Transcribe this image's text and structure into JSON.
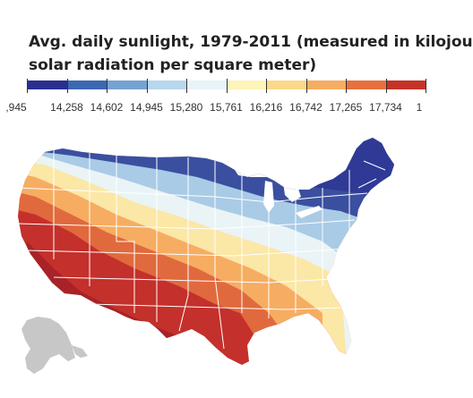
{
  "title": {
    "line1": "Avg. daily sunlight, 1979-2011 (measured in kilojou",
    "line2": "solar radiation per square meter)"
  },
  "legend": {
    "colors": [
      "#2a2f8f",
      "#3d67b3",
      "#76a3d1",
      "#b8d7ec",
      "#e8f3f6",
      "#fdf4b8",
      "#fbd98a",
      "#f6ad62",
      "#e7703f",
      "#c53227"
    ],
    "labels": [
      ",945",
      "14,258",
      "14,602",
      "14,945",
      "15,280",
      "15,761",
      "16,216",
      "16,742",
      "17,265",
      "17,734",
      "1"
    ]
  },
  "map": {
    "region_colors": {
      "northern_tier": "#3b4fa0",
      "northeast": "#2f3a96",
      "upper_midwest": "#4d72b8",
      "central_band": "#a9cbe6",
      "pale_band": "#eaf4f6",
      "yellow_band": "#fbe7a6",
      "orange_band": "#f6ad62",
      "south": "#e06a3d",
      "southwest": "#c4302b",
      "desert_core": "#a82228",
      "alaska": "#c7c7c7",
      "state_lines": "#ffffff"
    }
  }
}
